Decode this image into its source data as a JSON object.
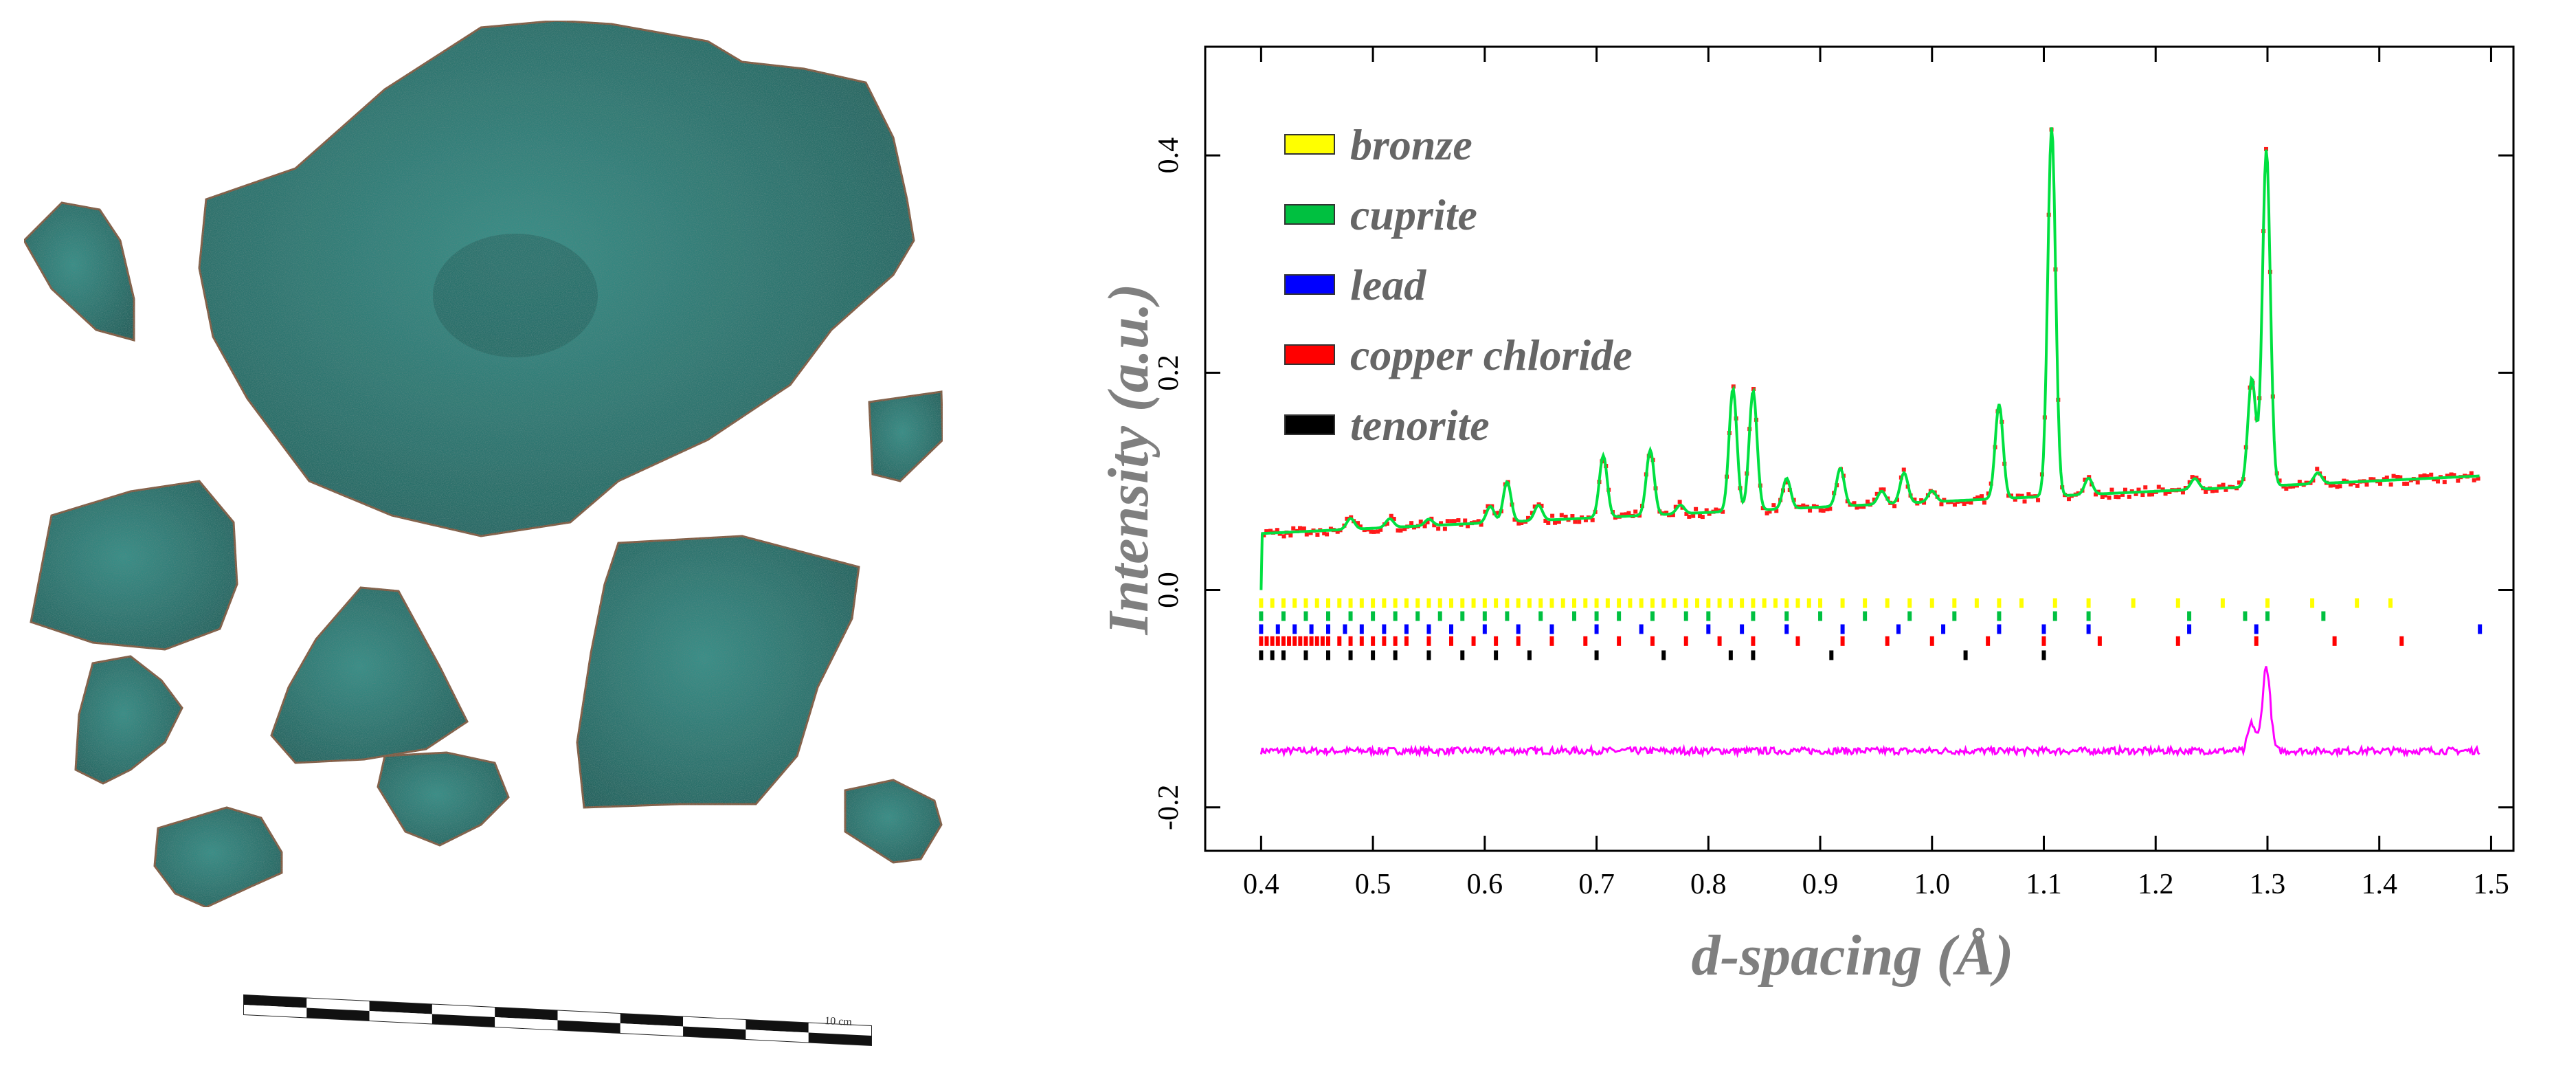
{
  "photo": {
    "subject": "corroded bronze fragments",
    "scale_bar_label": "10 cm",
    "colors": {
      "patina": "#3a8f88",
      "patina_dark": "#25605c",
      "rust": "#8a5a3c"
    }
  },
  "chart_data": {
    "type": "line",
    "title": "",
    "xlabel": "d-spacing (Å)",
    "ylabel": "Intensity (a.u.)",
    "xlim": [
      0.35,
      1.52
    ],
    "ylim": [
      -0.24,
      0.5
    ],
    "xticks": [
      0.4,
      0.5,
      0.6,
      0.7,
      0.8,
      0.9,
      1.0,
      1.1,
      1.2,
      1.3,
      1.4,
      1.5
    ],
    "xtick_labels": [
      "0.4",
      "0.5",
      "0.6",
      "0.7",
      "0.8",
      "0.9",
      "1.0",
      "1.1",
      "1.2",
      "1.3",
      "1.4",
      "1.5"
    ],
    "yticks": [
      -0.2,
      0.0,
      0.2,
      0.4
    ],
    "ytick_labels": [
      "-0.2",
      "0.0",
      "0.2",
      "0.4"
    ],
    "grid": false,
    "legend_position": "top-left",
    "background": {
      "start": [
        0.4,
        0.052
      ],
      "end": [
        1.49,
        0.105
      ]
    },
    "peaks": [
      {
        "x": 0.48,
        "h": 0.01
      },
      {
        "x": 0.515,
        "h": 0.008
      },
      {
        "x": 0.55,
        "h": 0.006
      },
      {
        "x": 0.605,
        "h": 0.015
      },
      {
        "x": 0.62,
        "h": 0.037
      },
      {
        "x": 0.648,
        "h": 0.014
      },
      {
        "x": 0.706,
        "h": 0.057
      },
      {
        "x": 0.748,
        "h": 0.06
      },
      {
        "x": 0.775,
        "h": 0.008
      },
      {
        "x": 0.822,
        "h": 0.113
      },
      {
        "x": 0.84,
        "h": 0.11
      },
      {
        "x": 0.87,
        "h": 0.028
      },
      {
        "x": 0.918,
        "h": 0.035
      },
      {
        "x": 0.955,
        "h": 0.012
      },
      {
        "x": 0.975,
        "h": 0.028
      },
      {
        "x": 1.0,
        "h": 0.01
      },
      {
        "x": 1.06,
        "h": 0.087
      },
      {
        "x": 1.107,
        "h": 0.34
      },
      {
        "x": 1.14,
        "h": 0.015
      },
      {
        "x": 1.235,
        "h": 0.01
      },
      {
        "x": 1.286,
        "h": 0.1
      },
      {
        "x": 1.299,
        "h": 0.31
      },
      {
        "x": 1.345,
        "h": 0.01
      }
    ],
    "series": [
      {
        "name": "observed",
        "color": "#ff1a1a"
      },
      {
        "name": "calculated",
        "color": "#00e040"
      },
      {
        "name": "difference",
        "color": "#ff00ff",
        "offset": -0.148
      }
    ],
    "phases": [
      {
        "name": "bronze",
        "color": "#ffff00",
        "y": -0.012,
        "ticks": [
          0.4,
          0.41,
          0.42,
          0.43,
          0.44,
          0.45,
          0.46,
          0.47,
          0.48,
          0.49,
          0.5,
          0.51,
          0.52,
          0.53,
          0.54,
          0.55,
          0.56,
          0.57,
          0.58,
          0.59,
          0.6,
          0.61,
          0.62,
          0.63,
          0.64,
          0.65,
          0.66,
          0.67,
          0.68,
          0.69,
          0.7,
          0.71,
          0.72,
          0.73,
          0.74,
          0.75,
          0.76,
          0.77,
          0.78,
          0.79,
          0.8,
          0.81,
          0.82,
          0.83,
          0.84,
          0.85,
          0.86,
          0.87,
          0.88,
          0.89,
          0.9,
          0.92,
          0.94,
          0.96,
          0.98,
          1.0,
          1.02,
          1.04,
          1.06,
          1.08,
          1.11,
          1.14,
          1.18,
          1.22,
          1.26,
          1.3,
          1.34,
          1.38,
          1.41
        ]
      },
      {
        "name": "cuprite",
        "color": "#00c040",
        "y": -0.024,
        "ticks": [
          0.4,
          0.42,
          0.44,
          0.46,
          0.48,
          0.5,
          0.52,
          0.54,
          0.56,
          0.58,
          0.6,
          0.62,
          0.65,
          0.68,
          0.7,
          0.72,
          0.75,
          0.78,
          0.8,
          0.84,
          0.87,
          0.9,
          0.94,
          0.98,
          1.02,
          1.06,
          1.11,
          1.14,
          1.23,
          1.28,
          1.3,
          1.35
        ]
      },
      {
        "name": "lead",
        "color": "#0000ff",
        "y": -0.036,
        "ticks": [
          0.4,
          0.415,
          0.43,
          0.445,
          0.46,
          0.475,
          0.49,
          0.51,
          0.53,
          0.55,
          0.57,
          0.6,
          0.63,
          0.66,
          0.7,
          0.74,
          0.8,
          0.83,
          0.87,
          0.92,
          0.97,
          1.01,
          1.06,
          1.1,
          1.14,
          1.23,
          1.29,
          1.49
        ]
      },
      {
        "name": "copper chloride",
        "color": "#ff0000",
        "y": -0.047,
        "ticks": [
          0.4,
          0.405,
          0.41,
          0.415,
          0.42,
          0.425,
          0.43,
          0.435,
          0.44,
          0.445,
          0.45,
          0.455,
          0.46,
          0.47,
          0.48,
          0.49,
          0.5,
          0.51,
          0.52,
          0.53,
          0.55,
          0.57,
          0.59,
          0.61,
          0.63,
          0.66,
          0.69,
          0.72,
          0.75,
          0.78,
          0.81,
          0.84,
          0.88,
          0.92,
          0.96,
          1.0,
          1.05,
          1.1,
          1.15,
          1.22,
          1.29,
          1.36,
          1.42
        ]
      },
      {
        "name": "tenorite",
        "color": "#000000",
        "y": -0.06,
        "ticks": [
          0.4,
          0.41,
          0.42,
          0.44,
          0.46,
          0.48,
          0.5,
          0.52,
          0.55,
          0.58,
          0.61,
          0.64,
          0.7,
          0.76,
          0.82,
          0.84,
          0.91,
          1.03,
          1.1
        ]
      }
    ]
  }
}
